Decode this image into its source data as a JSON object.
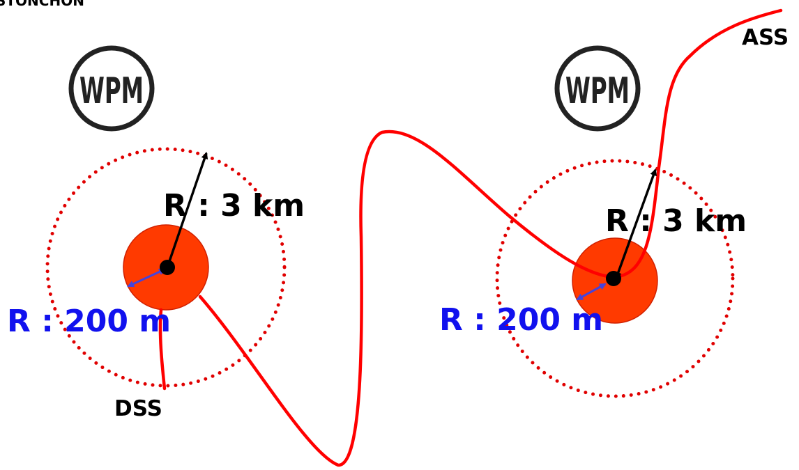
{
  "header": {
    "cut_text": "STONCHON"
  },
  "endpoints": {
    "start": "DSS",
    "end": "ASS"
  },
  "waypoints": [
    {
      "badge": "WPM",
      "outer_radius": "R : 3 km",
      "inner_radius": "R : 200 m"
    },
    {
      "badge": "WPM",
      "outer_radius": "R : 3 km",
      "inner_radius": "R : 200 m"
    }
  ],
  "colors": {
    "route": "#ff0000",
    "inner_zone": "#ff3a00",
    "inner_zone_stroke": "#d02000",
    "outer_zone_dots": "#e00000",
    "outer_label": "#000000",
    "inner_label": "#1111ee",
    "inner_arrow": "#4444dd",
    "badge": "#222222"
  }
}
